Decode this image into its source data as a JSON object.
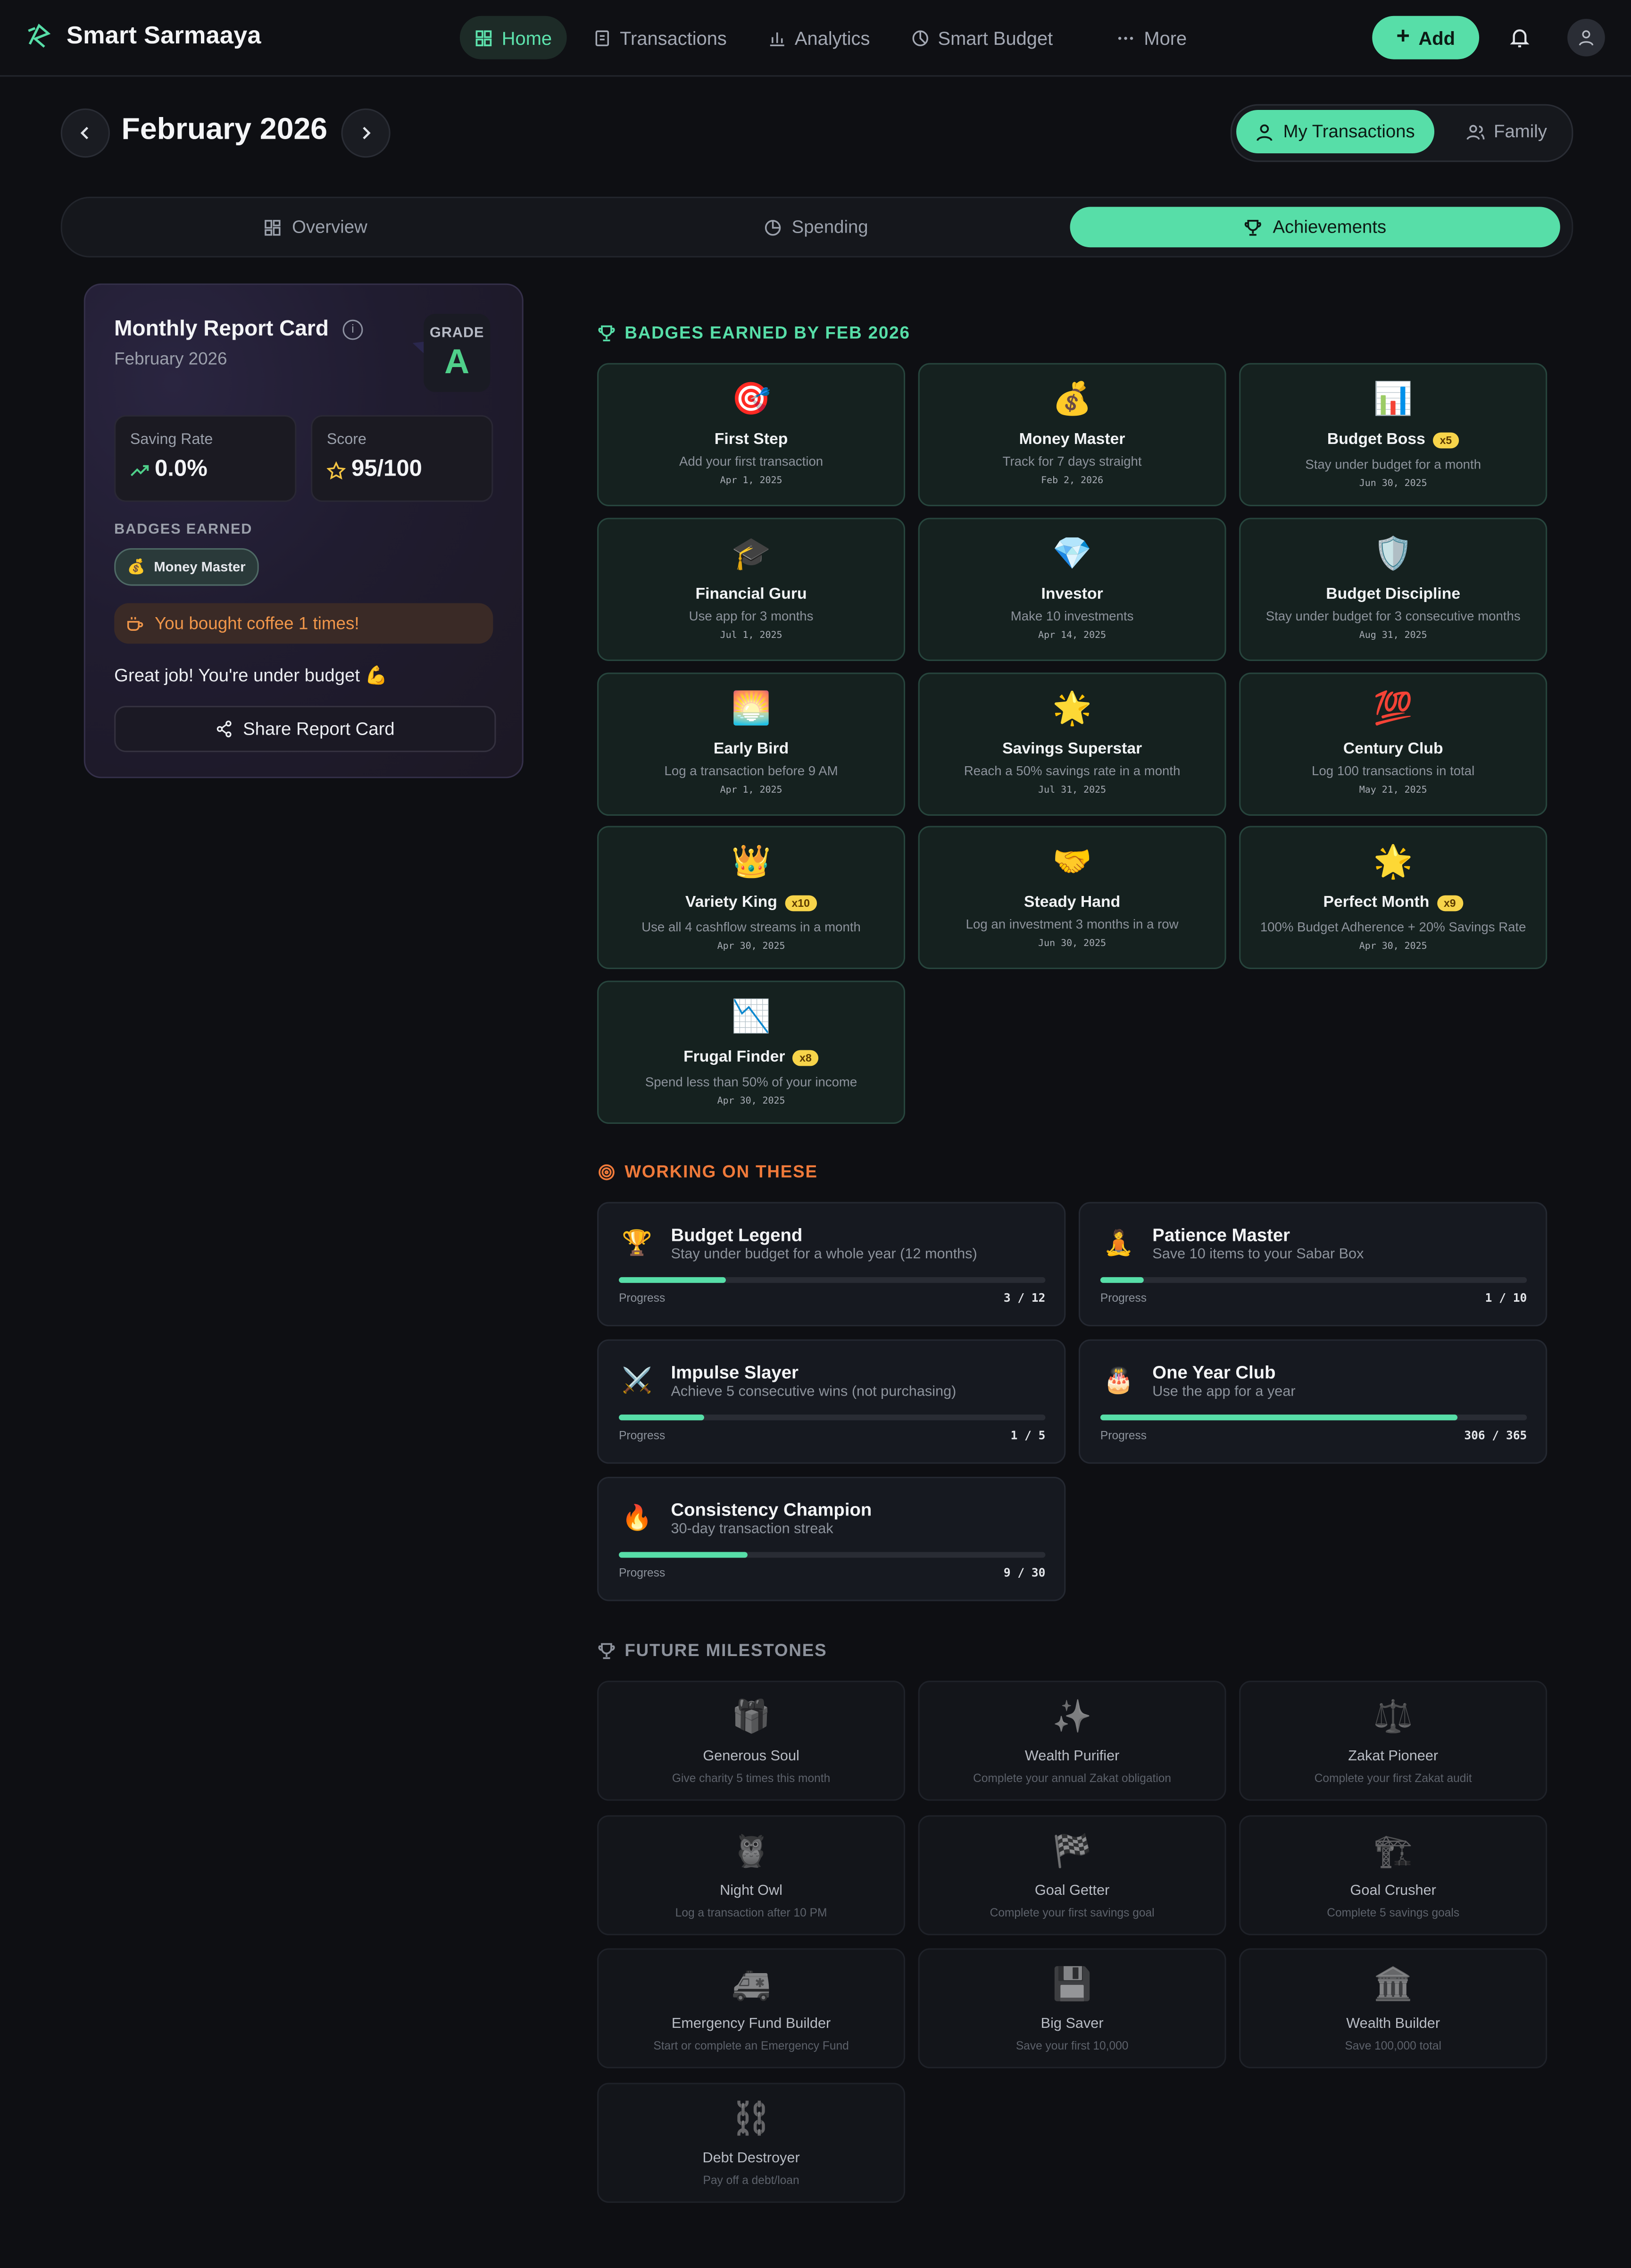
{
  "app": {
    "name": "Smart Sarmaaya"
  },
  "nav": {
    "items": [
      {
        "label": "Home",
        "active": true
      },
      {
        "label": "Transactions"
      },
      {
        "label": "Analytics"
      },
      {
        "label": "Smart Budget"
      },
      {
        "label": "More"
      }
    ],
    "add_label": "Add"
  },
  "period": {
    "title": "February 2026"
  },
  "view_toggle": {
    "mine": "My Transactions",
    "family": "Family"
  },
  "tabs": [
    {
      "label": "Overview"
    },
    {
      "label": "Spending"
    },
    {
      "label": "Achievements",
      "active": true
    }
  ],
  "report_card": {
    "title": "Monthly Report Card",
    "subtitle": "February 2026",
    "grade_label": "GRADE",
    "grade": "A",
    "saving_rate_label": "Saving Rate",
    "saving_rate": "0.0%",
    "score_label": "Score",
    "score": "95/100",
    "badges_label": "BADGES EARNED",
    "badge_chip": "Money Master",
    "coffee_text": "You bought coffee 1 times!",
    "message": "Great job! You're under budget 💪",
    "share_label": "Share Report Card"
  },
  "earned": {
    "heading": "BADGES EARNED BY FEB 2026",
    "badges": [
      {
        "icon": "🎯",
        "name": "First Step",
        "desc": "Add your first transaction",
        "date": "Apr 1, 2025",
        "mult": ""
      },
      {
        "icon": "💰",
        "name": "Money Master",
        "desc": "Track for 7 days straight",
        "date": "Feb 2, 2026",
        "mult": ""
      },
      {
        "icon": "📊",
        "name": "Budget Boss",
        "desc": "Stay under budget for a month",
        "date": "Jun 30, 2025",
        "mult": "x5"
      },
      {
        "icon": "🎓",
        "name": "Financial Guru",
        "desc": "Use app for 3 months",
        "date": "Jul 1, 2025",
        "mult": ""
      },
      {
        "icon": "💎",
        "name": "Investor",
        "desc": "Make 10 investments",
        "date": "Apr 14, 2025",
        "mult": ""
      },
      {
        "icon": "🛡️",
        "name": "Budget Discipline",
        "desc": "Stay under budget for 3 consecutive months",
        "date": "Aug 31, 2025",
        "mult": ""
      },
      {
        "icon": "🌅",
        "name": "Early Bird",
        "desc": "Log a transaction before 9 AM",
        "date": "Apr 1, 2025",
        "mult": ""
      },
      {
        "icon": "🌟",
        "name": "Savings Superstar",
        "desc": "Reach a 50% savings rate in a month",
        "date": "Jul 31, 2025",
        "mult": ""
      },
      {
        "icon": "💯",
        "name": "Century Club",
        "desc": "Log 100 transactions in total",
        "date": "May 21, 2025",
        "mult": ""
      },
      {
        "icon": "👑",
        "name": "Variety King",
        "desc": "Use all 4 cashflow streams in a month",
        "date": "Apr 30, 2025",
        "mult": "x10"
      },
      {
        "icon": "🤝",
        "name": "Steady Hand",
        "desc": "Log an investment 3 months in a row",
        "date": "Jun 30, 2025",
        "mult": ""
      },
      {
        "icon": "🌟",
        "name": "Perfect Month",
        "desc": "100% Budget Adherence + 20% Savings Rate",
        "date": "Apr 30, 2025",
        "mult": "x9"
      },
      {
        "icon": "📉",
        "name": "Frugal Finder",
        "desc": "Spend less than 50% of your income",
        "date": "Apr 30, 2025",
        "mult": "x8"
      }
    ]
  },
  "working": {
    "heading": "WORKING ON THESE",
    "progress_label": "Progress",
    "items": [
      {
        "icon": "🏆",
        "name": "Budget Legend",
        "desc": "Stay under budget for a whole year (12 months)",
        "current": 3,
        "total": 12,
        "count": "3 / 12"
      },
      {
        "icon": "🧘",
        "name": "Patience Master",
        "desc": "Save 10 items to your Sabar Box",
        "current": 1,
        "total": 10,
        "count": "1 / 10"
      },
      {
        "icon": "⚔️",
        "name": "Impulse Slayer",
        "desc": "Achieve 5 consecutive wins (not purchasing)",
        "current": 1,
        "total": 5,
        "count": "1 / 5"
      },
      {
        "icon": "🎂",
        "name": "One Year Club",
        "desc": "Use the app for a year",
        "current": 306,
        "total": 365,
        "count": "306 / 365"
      },
      {
        "icon": "🔥",
        "name": "Consistency Champion",
        "desc": "30-day transaction streak",
        "current": 9,
        "total": 30,
        "count": "9 / 30"
      }
    ]
  },
  "future": {
    "heading": "FUTURE MILESTONES",
    "items": [
      {
        "icon": "🎁",
        "name": "Generous Soul",
        "desc": "Give charity 5 times this month"
      },
      {
        "icon": "✨",
        "name": "Wealth Purifier",
        "desc": "Complete your annual Zakat obligation"
      },
      {
        "icon": "⚖️",
        "name": "Zakat Pioneer",
        "desc": "Complete your first Zakat audit"
      },
      {
        "icon": "🦉",
        "name": "Night Owl",
        "desc": "Log a transaction after 10 PM"
      },
      {
        "icon": "🏁",
        "name": "Goal Getter",
        "desc": "Complete your first savings goal"
      },
      {
        "icon": "🏗️",
        "name": "Goal Crusher",
        "desc": "Complete 5 savings goals"
      },
      {
        "icon": "🚑",
        "name": "Emergency Fund Builder",
        "desc": "Start or complete an Emergency Fund"
      },
      {
        "icon": "💾",
        "name": "Big Saver",
        "desc": "Save your first 10,000"
      },
      {
        "icon": "🏛️",
        "name": "Wealth Builder",
        "desc": "Save 100,000 total"
      },
      {
        "icon": "⛓️",
        "name": "Debt Destroyer",
        "desc": "Pay off a debt/loan"
      }
    ]
  },
  "colors": {
    "accent": "#57dea8",
    "orange": "#f0964a",
    "grade": "#4fd08a"
  }
}
